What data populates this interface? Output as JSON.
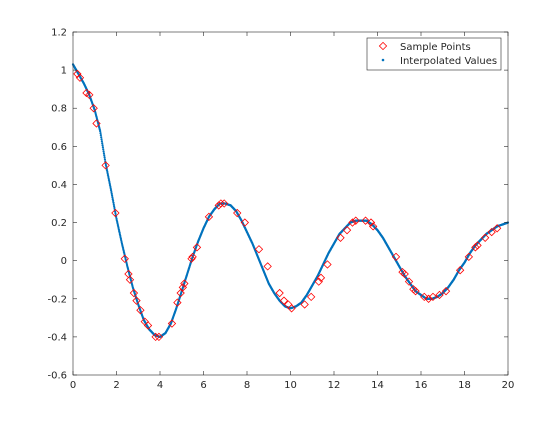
{
  "chart_data": {
    "type": "scatter",
    "title": "",
    "xlabel": "",
    "ylabel": "",
    "xlim": [
      0,
      20
    ],
    "ylim": [
      -0.6,
      1.2
    ],
    "xticks": [
      0,
      2,
      4,
      6,
      8,
      10,
      12,
      14,
      16,
      18,
      20
    ],
    "yticks": [
      -0.6,
      -0.4,
      -0.2,
      0,
      0.2,
      0.4,
      0.6,
      0.8,
      1,
      1.2
    ],
    "xtick_labels": [
      "0",
      "2",
      "4",
      "6",
      "8",
      "10",
      "12",
      "14",
      "16",
      "18",
      "20"
    ],
    "ytick_labels": [
      "-0.6",
      "-0.4",
      "-0.2",
      "0",
      "0.2",
      "0.4",
      "0.6",
      "0.8",
      "1",
      "1.2"
    ],
    "grid": false,
    "legend_position": "top-right",
    "series": [
      {
        "name": "Sample Points",
        "marker": "diamond-open",
        "color": "#ff0000",
        "x": [
          0.2,
          0.32,
          0.62,
          0.75,
          0.95,
          1.08,
          1.5,
          1.95,
          2.38,
          2.55,
          2.62,
          2.8,
          2.92,
          3.1,
          3.3,
          3.45,
          3.8,
          3.95,
          4.55,
          4.8,
          4.95,
          5.05,
          5.12,
          5.45,
          5.5,
          5.7,
          6.25,
          6.7,
          6.8,
          6.95,
          7.55,
          7.9,
          8.55,
          8.95,
          9.5,
          9.7,
          9.9,
          10.05,
          10.65,
          10.95,
          11.3,
          11.4,
          11.7,
          12.3,
          12.6,
          12.85,
          13.0,
          13.45,
          13.7,
          13.8,
          14.85,
          15.15,
          15.25,
          15.45,
          15.65,
          15.75,
          16.15,
          16.35,
          16.55,
          16.85,
          17.15,
          17.8,
          18.2,
          18.5,
          18.6,
          18.95,
          19.25,
          19.5
        ],
        "y": [
          0.98,
          0.96,
          0.88,
          0.87,
          0.8,
          0.72,
          0.5,
          0.25,
          0.01,
          -0.07,
          -0.1,
          -0.17,
          -0.21,
          -0.26,
          -0.32,
          -0.34,
          -0.4,
          -0.4,
          -0.33,
          -0.22,
          -0.17,
          -0.14,
          -0.12,
          0.01,
          0.02,
          0.07,
          0.23,
          0.29,
          0.3,
          0.3,
          0.25,
          0.2,
          0.06,
          -0.03,
          -0.17,
          -0.21,
          -0.23,
          -0.25,
          -0.23,
          -0.19,
          -0.11,
          -0.09,
          -0.02,
          0.12,
          0.16,
          0.2,
          0.21,
          0.21,
          0.2,
          0.18,
          0.02,
          -0.06,
          -0.07,
          -0.11,
          -0.15,
          -0.16,
          -0.19,
          -0.2,
          -0.19,
          -0.18,
          -0.16,
          -0.05,
          0.02,
          0.07,
          0.08,
          0.12,
          0.15,
          0.17
        ]
      },
      {
        "name": "Interpolated Values",
        "marker": "dot",
        "color": "#0072bd",
        "x": [
          0.0,
          0.25,
          0.5,
          0.75,
          1.0,
          1.25,
          1.5,
          1.75,
          2.0,
          2.25,
          2.5,
          2.75,
          3.0,
          3.25,
          3.5,
          3.75,
          4.0,
          4.25,
          4.5,
          4.75,
          5.0,
          5.25,
          5.5,
          5.75,
          6.0,
          6.25,
          6.5,
          6.75,
          7.0,
          7.25,
          7.5,
          7.75,
          8.0,
          8.25,
          8.5,
          8.75,
          9.0,
          9.25,
          9.5,
          9.75,
          10.0,
          10.25,
          10.5,
          10.75,
          11.0,
          11.25,
          11.5,
          11.75,
          12.0,
          12.25,
          12.5,
          12.75,
          13.0,
          13.25,
          13.5,
          13.75,
          14.0,
          14.25,
          14.5,
          14.75,
          15.0,
          15.25,
          15.5,
          15.75,
          16.0,
          16.25,
          16.5,
          16.75,
          17.0,
          17.25,
          17.5,
          17.75,
          18.0,
          18.25,
          18.5,
          18.75,
          19.0,
          19.25,
          19.5,
          19.75,
          20.0
        ],
        "y": [
          1.03,
          0.98,
          0.93,
          0.87,
          0.79,
          0.68,
          0.51,
          0.37,
          0.22,
          0.09,
          -0.03,
          -0.14,
          -0.23,
          -0.31,
          -0.36,
          -0.39,
          -0.4,
          -0.38,
          -0.33,
          -0.25,
          -0.16,
          -0.07,
          0.02,
          0.1,
          0.17,
          0.23,
          0.27,
          0.3,
          0.3,
          0.29,
          0.26,
          0.21,
          0.15,
          0.09,
          0.02,
          -0.05,
          -0.12,
          -0.17,
          -0.21,
          -0.24,
          -0.25,
          -0.24,
          -0.22,
          -0.18,
          -0.13,
          -0.08,
          -0.02,
          0.04,
          0.09,
          0.14,
          0.17,
          0.2,
          0.21,
          0.21,
          0.21,
          0.19,
          0.16,
          0.12,
          0.07,
          0.02,
          -0.03,
          -0.08,
          -0.12,
          -0.16,
          -0.18,
          -0.2,
          -0.2,
          -0.19,
          -0.17,
          -0.14,
          -0.1,
          -0.05,
          -0.01,
          0.04,
          0.08,
          0.11,
          0.14,
          0.16,
          0.18,
          0.19,
          0.2
        ]
      }
    ]
  }
}
